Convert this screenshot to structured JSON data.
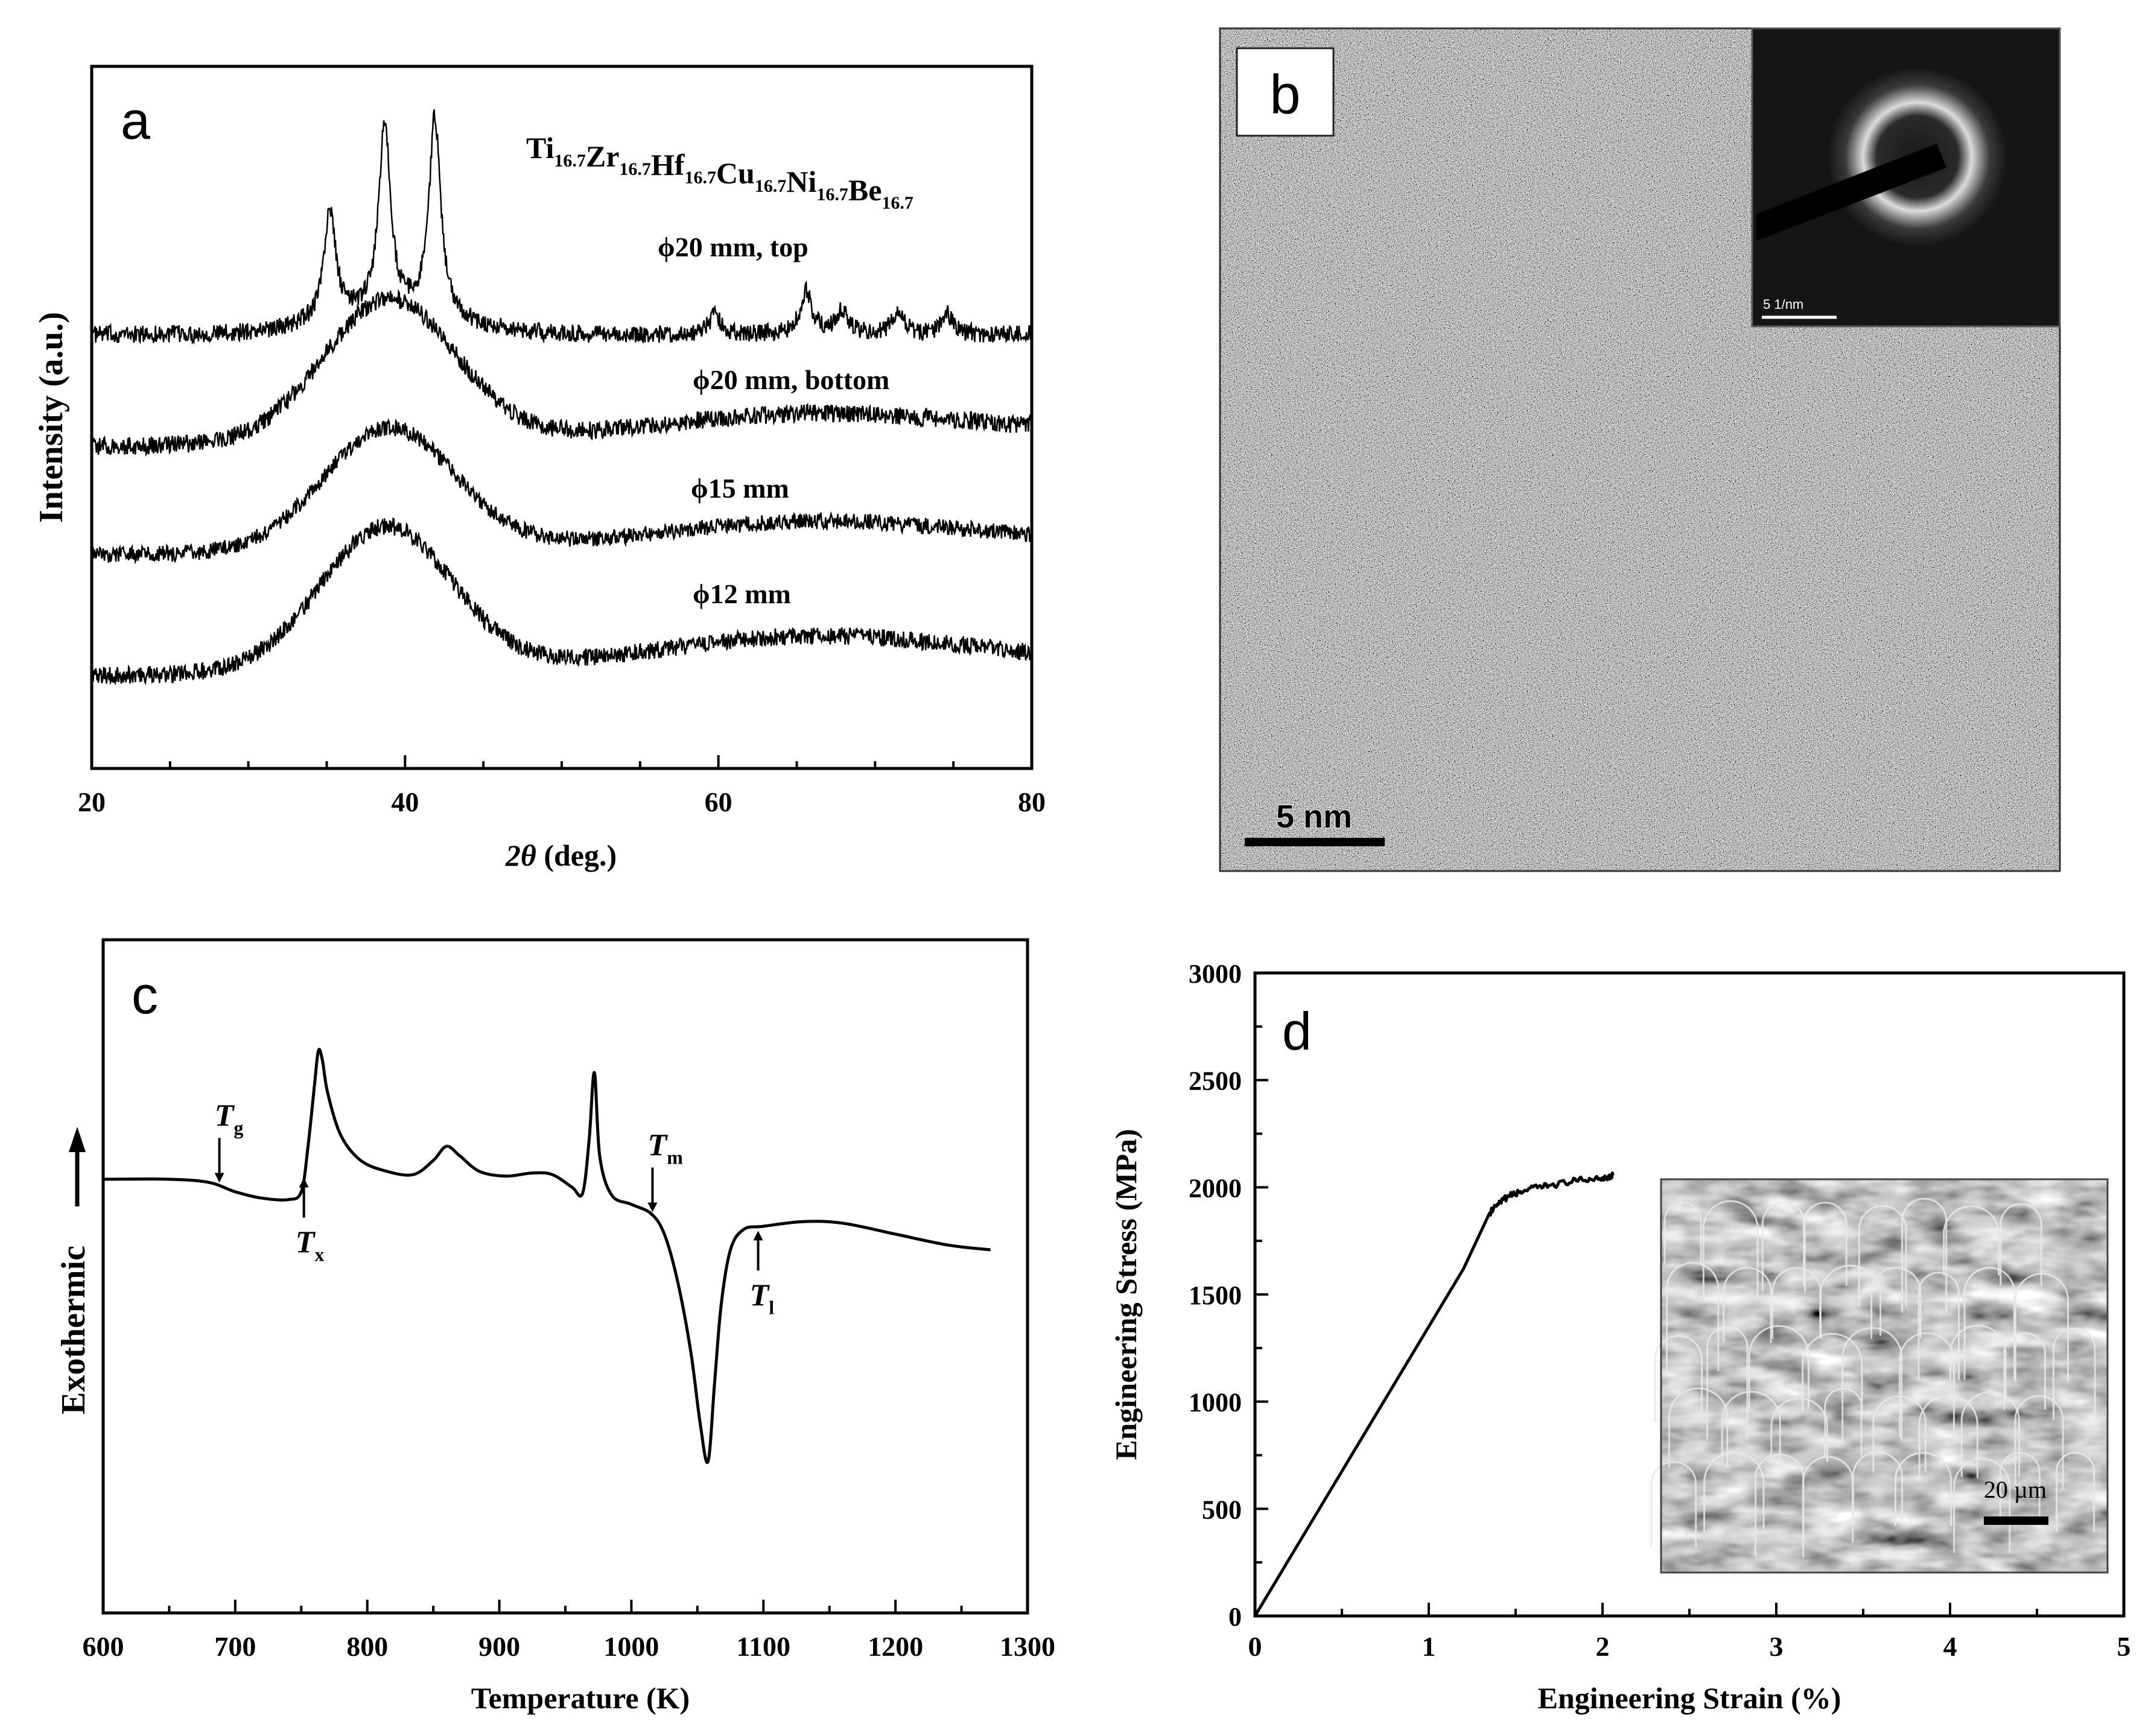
{
  "chart_data": [
    {
      "panel": "a",
      "type": "line",
      "title": "",
      "composition": {
        "base": [
          "Ti",
          "Zr",
          "Hf",
          "Cu",
          "Ni",
          "Be"
        ],
        "sub": "16.7"
      },
      "xlabel_italic": "2θ",
      "xlabel_rest": " (deg.)",
      "ylabel": "Intensity (a.u.)",
      "xlim": [
        20,
        80
      ],
      "xticks": [
        "20",
        "40",
        "60",
        "80"
      ],
      "series": [
        {
          "name": "ϕ20 mm, top",
          "peaks": [
            [
              35.2,
              0.55
            ],
            [
              38.7,
              0.95
            ],
            [
              41.9,
              1.0
            ],
            [
              59.8,
              0.1
            ],
            [
              65.6,
              0.22
            ],
            [
              67.9,
              0.12
            ],
            [
              71.5,
              0.12
            ],
            [
              74.6,
              0.1
            ]
          ],
          "hump_center": 39,
          "hump_height": 0.1
        },
        {
          "name": "ϕ20 mm, bottom",
          "hump_center": 39,
          "hump_height": 0.72,
          "tail": 0.12
        },
        {
          "name": "ϕ15 mm",
          "hump_center": 39,
          "hump_height": 0.68,
          "tail": 0.14
        },
        {
          "name": "ϕ12 mm",
          "hump_center": 38.8,
          "hump_height": 0.75,
          "tail": 0.16
        }
      ]
    },
    {
      "panel": "b",
      "type": "image",
      "scale_bar": "5 nm",
      "inset_scale_bar": "5 1/nm"
    },
    {
      "panel": "c",
      "type": "line",
      "title": "",
      "xlabel": "Temperature (K)",
      "ylabel": "Exothermic",
      "xlim": [
        600,
        1300
      ],
      "xticks": [
        "600",
        "700",
        "800",
        "900",
        "1000",
        "1100",
        "1200",
        "1300"
      ],
      "x": [
        600,
        650,
        680,
        700,
        720,
        740,
        750,
        755,
        760,
        763,
        766,
        770,
        780,
        795,
        815,
        835,
        850,
        860,
        870,
        885,
        905,
        925,
        940,
        955,
        963,
        968,
        972,
        976,
        985,
        1000,
        1015,
        1025,
        1035,
        1045,
        1052,
        1058,
        1063,
        1068,
        1075,
        1085,
        1100,
        1130,
        1160,
        1200,
        1240,
        1272
      ],
      "y": [
        0,
        0,
        -0.2,
        -0.8,
        -1.2,
        -1.3,
        -0.8,
        2.0,
        6.0,
        8.2,
        7.6,
        5.5,
        2.8,
        1.2,
        0.5,
        0.3,
        1.2,
        2.1,
        1.5,
        0.5,
        0.2,
        0.4,
        0.3,
        -0.5,
        -0.9,
        2.5,
        6.8,
        1.5,
        -1.0,
        -1.6,
        -2.2,
        -3.5,
        -6.5,
        -11.0,
        -15.5,
        -18.0,
        -13.0,
        -8.0,
        -4.5,
        -3.2,
        -3.0,
        -2.7,
        -2.8,
        -3.5,
        -4.2,
        -4.5
      ],
      "annotations": [
        {
          "base": "T",
          "sub": "g",
          "x": 688
        },
        {
          "base": "T",
          "sub": "x",
          "x": 752
        },
        {
          "base": "T",
          "sub": "m",
          "x": 1016
        },
        {
          "base": "T",
          "sub": "l",
          "x": 1096
        }
      ]
    },
    {
      "panel": "d",
      "type": "line",
      "title": "",
      "xlabel": "Engineering Strain (%)",
      "ylabel": "Engineering Stress (MPa)",
      "xlim": [
        0,
        5
      ],
      "ylim": [
        0,
        3000
      ],
      "xticks": [
        "0",
        "1",
        "2",
        "3",
        "4",
        "5"
      ],
      "yticks": [
        "0",
        "500",
        "1000",
        "1500",
        "2000",
        "2500",
        "3000"
      ],
      "x": [
        0,
        0.3,
        0.6,
        0.9,
        1.2,
        1.35,
        1.45,
        1.55,
        1.7,
        1.85,
        2.0,
        2.06
      ],
      "y": [
        0,
        405,
        810,
        1215,
        1620,
        1880,
        1955,
        1985,
        2010,
        2030,
        2045,
        2055
      ],
      "inset_scale_bar": "20 µm"
    }
  ]
}
